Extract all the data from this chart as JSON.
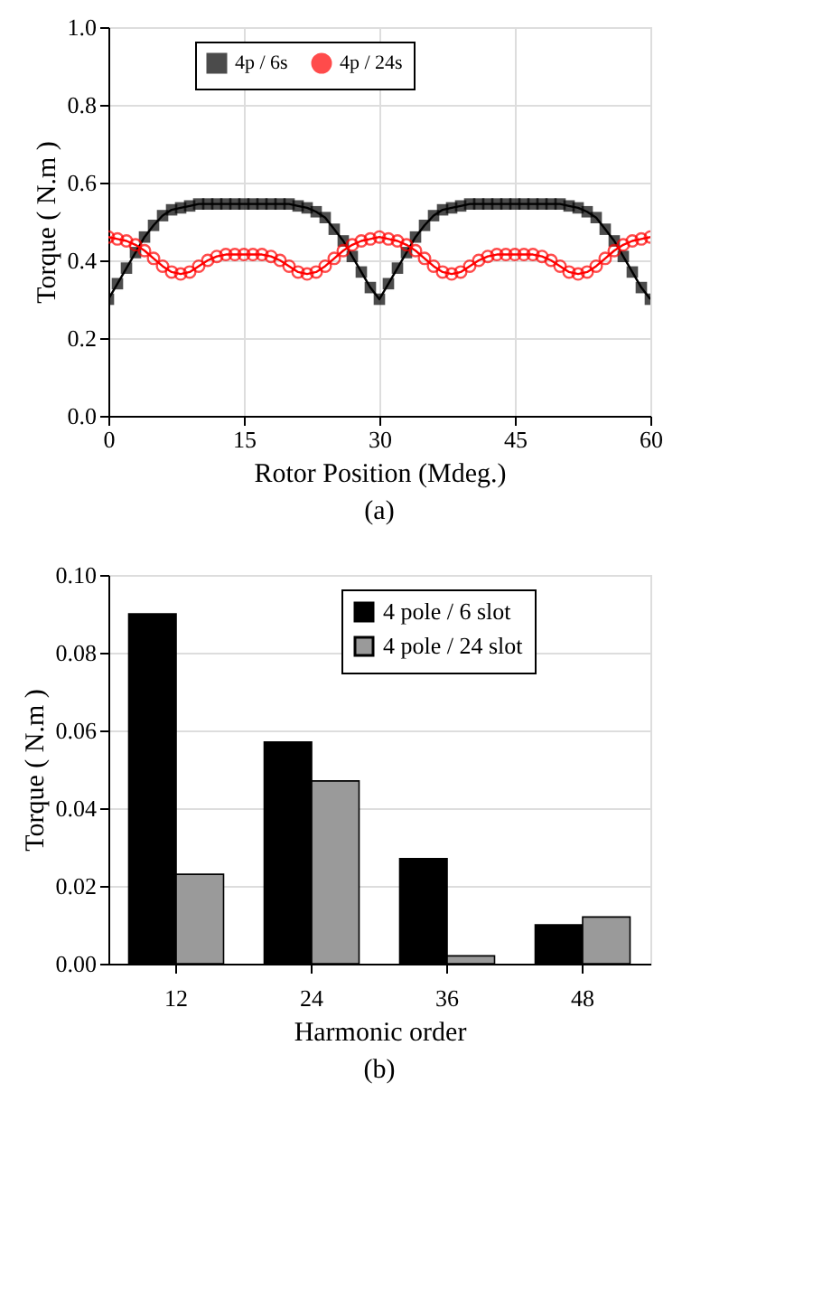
{
  "chart_data": [
    {
      "type": "line",
      "xlabel": "Rotor Position (Mdeg.)",
      "ylabel": "Torque ( N.m )",
      "annotations": [
        "(a)"
      ],
      "x": [
        0,
        1,
        2,
        3,
        4,
        5,
        6,
        7,
        8,
        9,
        10,
        11,
        12,
        13,
        14,
        15,
        16,
        17,
        18,
        19,
        20,
        21,
        22,
        23,
        24,
        25,
        26,
        27,
        28,
        29,
        30,
        31,
        32,
        33,
        34,
        35,
        36,
        37,
        38,
        39,
        40,
        41,
        42,
        43,
        44,
        45,
        46,
        47,
        48,
        49,
        50,
        51,
        52,
        53,
        54,
        55,
        56,
        57,
        58,
        59,
        60
      ],
      "series": [
        {
          "name": "4p / 6s",
          "color": "#000000",
          "marker": "square",
          "values": [
            0.3,
            0.34,
            0.38,
            0.42,
            0.46,
            0.49,
            0.515,
            0.53,
            0.535,
            0.54,
            0.545,
            0.545,
            0.545,
            0.545,
            0.545,
            0.545,
            0.545,
            0.545,
            0.545,
            0.545,
            0.545,
            0.54,
            0.535,
            0.525,
            0.51,
            0.48,
            0.45,
            0.41,
            0.37,
            0.33,
            0.3,
            0.34,
            0.38,
            0.42,
            0.46,
            0.49,
            0.515,
            0.53,
            0.535,
            0.54,
            0.545,
            0.545,
            0.545,
            0.545,
            0.545,
            0.545,
            0.545,
            0.545,
            0.545,
            0.545,
            0.545,
            0.54,
            0.535,
            0.525,
            0.51,
            0.48,
            0.45,
            0.41,
            0.37,
            0.33,
            0.3
          ]
        },
        {
          "name": "4p / 24s",
          "color": "#ff0000",
          "marker": "circle",
          "values": [
            0.46,
            0.455,
            0.45,
            0.44,
            0.425,
            0.405,
            0.385,
            0.37,
            0.365,
            0.37,
            0.385,
            0.4,
            0.41,
            0.415,
            0.415,
            0.415,
            0.415,
            0.415,
            0.41,
            0.4,
            0.385,
            0.37,
            0.365,
            0.37,
            0.385,
            0.405,
            0.425,
            0.44,
            0.45,
            0.455,
            0.46,
            0.455,
            0.45,
            0.44,
            0.425,
            0.405,
            0.385,
            0.37,
            0.365,
            0.37,
            0.385,
            0.4,
            0.41,
            0.415,
            0.415,
            0.415,
            0.415,
            0.415,
            0.41,
            0.4,
            0.385,
            0.37,
            0.365,
            0.37,
            0.385,
            0.405,
            0.425,
            0.44,
            0.45,
            0.455,
            0.46
          ]
        }
      ],
      "xlim": [
        0,
        60
      ],
      "xticks": [
        0,
        15,
        30,
        45,
        60
      ],
      "ylim": [
        0,
        1.0
      ],
      "yticks": [
        {
          "value": 0,
          "label": "0.0"
        },
        {
          "value": 0.2,
          "label": "0.2"
        },
        {
          "value": 0.4,
          "label": "0.4"
        },
        {
          "value": 0.6,
          "label": "0.6"
        },
        {
          "value": 0.8,
          "label": "0.8"
        },
        {
          "value": 1.0,
          "label": "1.0"
        }
      ],
      "grid": true,
      "legend": "top",
      "line_style": "solid"
    },
    {
      "type": "bar",
      "xlabel": "Harmonic order",
      "ylabel": "Torque ( N.m )",
      "annotations": [
        "(b)"
      ],
      "categories": [
        "12",
        "24",
        "36",
        "48"
      ],
      "series": [
        {
          "name": "4 pole / 6 slot",
          "color": "#000000",
          "values": [
            0.09,
            0.057,
            0.027,
            0.01
          ]
        },
        {
          "name": "4 pole / 24 slot",
          "color": "#9a9a9a",
          "values": [
            0.023,
            0.047,
            0.002,
            0.012
          ]
        }
      ],
      "ylim": [
        0,
        0.1
      ],
      "yticks": [
        {
          "value": 0,
          "label": "0.00"
        },
        {
          "value": 0.02,
          "label": "0.02"
        },
        {
          "value": 0.04,
          "label": "0.04"
        },
        {
          "value": 0.06,
          "label": "0.06"
        },
        {
          "value": 0.08,
          "label": "0.08"
        },
        {
          "value": 0.1,
          "label": "0.10"
        }
      ],
      "grid": true,
      "legend": "top right"
    }
  ]
}
